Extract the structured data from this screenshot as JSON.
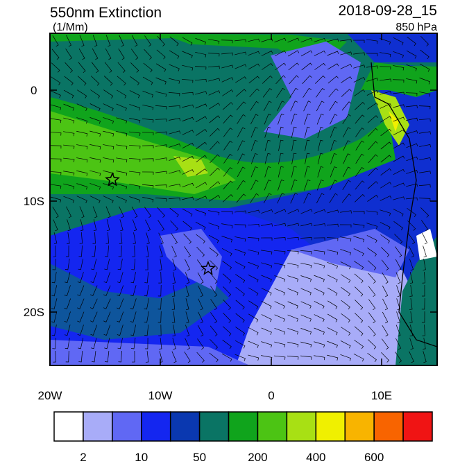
{
  "header": {
    "title": "550nm Extinction",
    "units": "(1/Mm)",
    "date": "2018-09-28_15",
    "level": "850 hPa"
  },
  "map": {
    "lat_labels": [
      "0",
      "10S",
      "20S"
    ],
    "lon_labels": [
      "20W",
      "10W",
      "0",
      "10E"
    ]
  },
  "colorbar": {
    "colors": [
      "#ffffff",
      "#a8acf8",
      "#6068f4",
      "#1426f0",
      "#0a38b0",
      "#0a7464",
      "#10a41c",
      "#4cc414",
      "#a8e014",
      "#f0f000",
      "#f8b400",
      "#f86400",
      "#f01414"
    ],
    "labels": [
      "2",
      "10",
      "50",
      "200",
      "400",
      "600"
    ]
  }
}
